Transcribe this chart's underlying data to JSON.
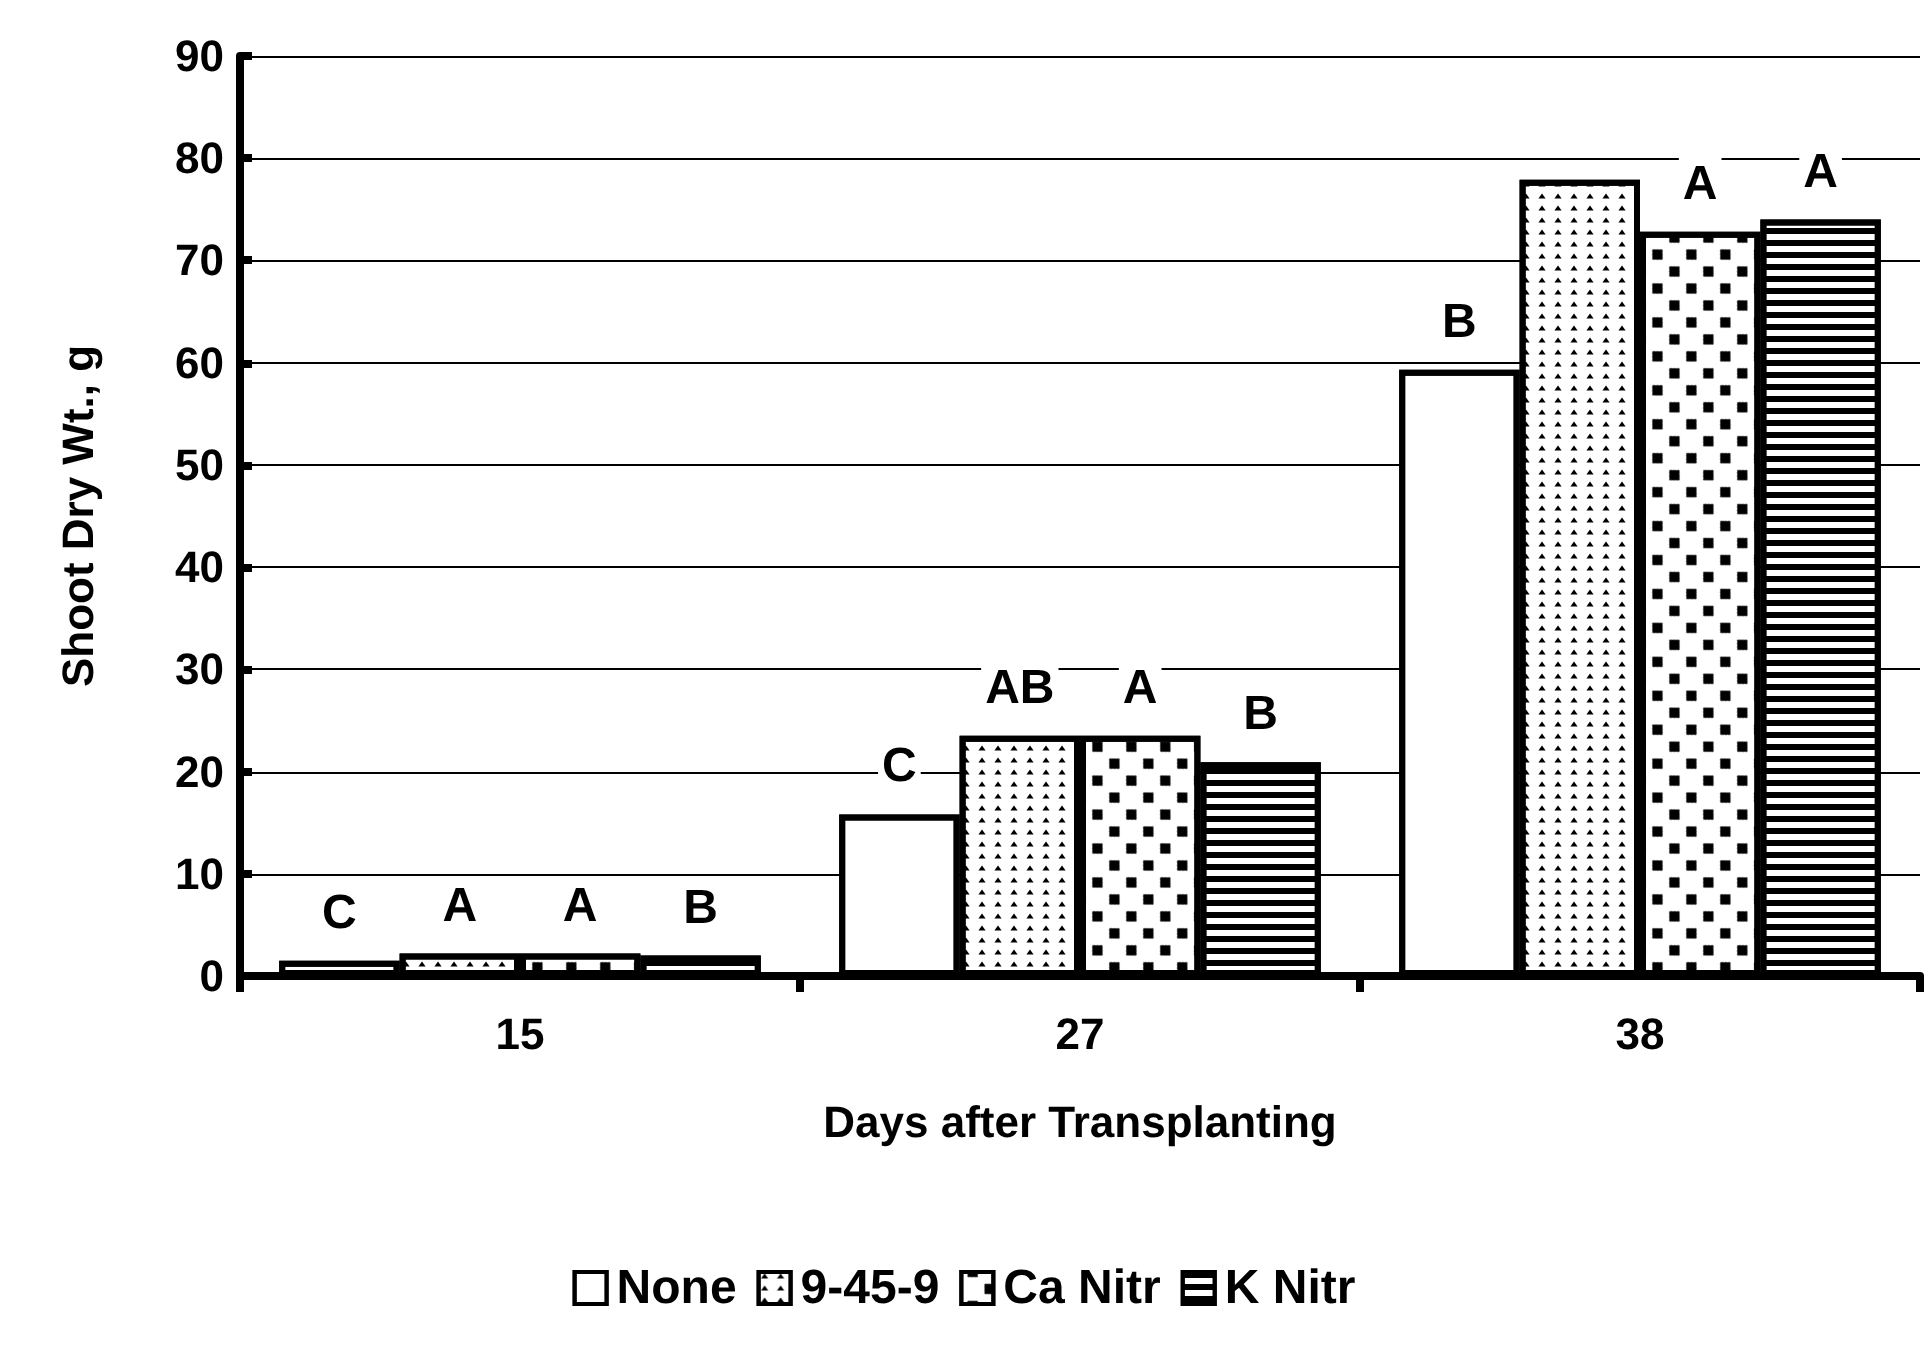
{
  "chart_data": {
    "type": "bar",
    "xlabel": "Days after Transplanting",
    "ylabel": "Shoot Dry Wt., g",
    "categories": [
      "15",
      "27",
      "38"
    ],
    "series": [
      {
        "name": "None",
        "color": "#ffffff",
        "values": [
          1.5,
          15.8,
          59.3
        ],
        "value_labels": [
          "C",
          "C",
          "B"
        ]
      },
      {
        "name": "9-45-9",
        "color": "#ffffff",
        "values": [
          2.2,
          23.5,
          77.9
        ],
        "value_labels": [
          "A",
          "AB",
          null
        ]
      },
      {
        "name": "Ca Nitr",
        "color": "#ffffff",
        "values": [
          2.2,
          23.5,
          72.8
        ],
        "value_labels": [
          "A",
          "A",
          "A"
        ]
      },
      {
        "name": "K Nitr",
        "color": "#ffffff",
        "values": [
          2.0,
          20.9,
          74.0
        ],
        "value_labels": [
          "B",
          "B",
          "A"
        ]
      }
    ],
    "ylim": [
      0,
      90
    ],
    "yticks": [
      0,
      10,
      20,
      30,
      40,
      50,
      60,
      70,
      80,
      90
    ],
    "grid": "y",
    "legend": "bottom"
  }
}
